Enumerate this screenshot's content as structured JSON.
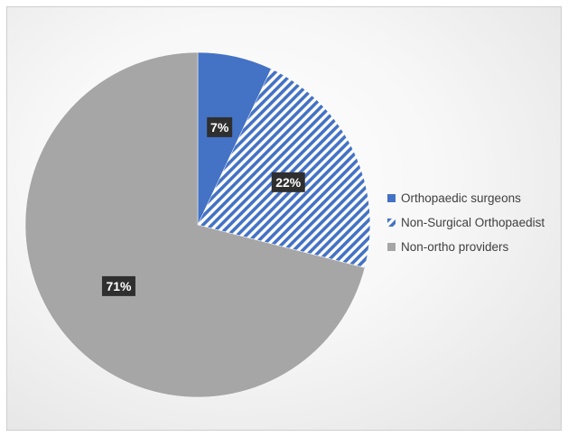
{
  "chart_data": {
    "type": "pie",
    "title": "",
    "categories": [
      "Orthopaedic surgeons",
      "Non-Surgical Orthopaedist",
      "Non-ortho providers"
    ],
    "values": [
      7,
      22,
      71
    ],
    "data_labels": [
      "7%",
      "22%",
      "71%"
    ],
    "colors": [
      "#4472c4",
      "#4472c4",
      "#a6a6a6"
    ],
    "patterns": [
      "solid",
      "diagonal-stripes",
      "solid"
    ],
    "legend_position": "right"
  }
}
